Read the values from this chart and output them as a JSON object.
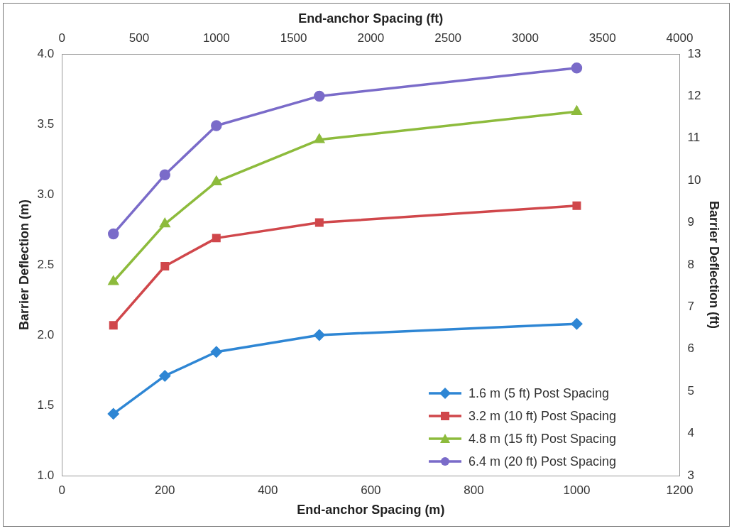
{
  "chart_data": {
    "type": "line",
    "xlabel": "End-anchor Spacing (m)",
    "x2label": "End-anchor Spacing (ft)",
    "ylabel": "Barrier Deflection (m)",
    "y2label": "Barrier Deflection (ft)",
    "x": [
      100,
      200,
      300,
      500,
      1000
    ],
    "xlim": [
      0,
      1200
    ],
    "xticks": [
      0,
      200,
      400,
      600,
      800,
      1000,
      1200
    ],
    "x2lim": [
      0,
      4000
    ],
    "x2ticks": [
      0,
      500,
      1000,
      1500,
      2000,
      2500,
      3000,
      3500,
      4000
    ],
    "ylim": [
      1.0,
      4.0
    ],
    "yticks": [
      {
        "value": 1,
        "label": "1.0"
      },
      {
        "value": 1.5,
        "label": "1.5"
      },
      {
        "value": 2,
        "label": "2.0"
      },
      {
        "value": 2.5,
        "label": "2.5"
      },
      {
        "value": 3,
        "label": "3.0"
      },
      {
        "value": 3.5,
        "label": "3.5"
      },
      {
        "value": 4,
        "label": "4.0"
      }
    ],
    "y2lim": [
      3,
      13
    ],
    "y2ticks": [
      3,
      4,
      5,
      6,
      7,
      8,
      9,
      10,
      11,
      12,
      13
    ],
    "grid": false,
    "legend": "bottom right",
    "line_style": "solid",
    "series": [
      {
        "name": "1.6 m (5 ft) Post Spacing",
        "color": "#2e86d4",
        "marker": "diamond",
        "values": [
          1.44,
          1.71,
          1.88,
          2.0,
          2.08
        ]
      },
      {
        "name": "3.2 m (10 ft) Post Spacing",
        "color": "#d0474b",
        "marker": "square",
        "values": [
          2.07,
          2.49,
          2.69,
          2.8,
          2.92
        ]
      },
      {
        "name": "4.8 m (15 ft) Post Spacing",
        "color": "#8dbb3c",
        "marker": "triangle",
        "values": [
          2.38,
          2.79,
          3.09,
          3.39,
          3.59
        ]
      },
      {
        "name": "6.4 m (20 ft) Post Spacing",
        "color": "#7a6bc9",
        "marker": "circle",
        "values": [
          2.72,
          3.14,
          3.49,
          3.7,
          3.9
        ]
      }
    ]
  }
}
